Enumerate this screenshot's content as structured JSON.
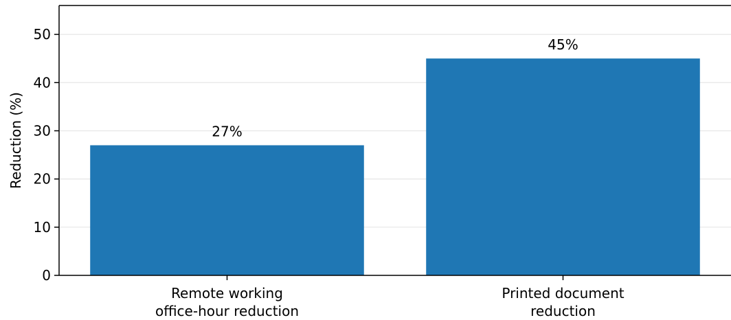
{
  "chart_data": {
    "type": "bar",
    "categories": [
      [
        "Remote working",
        "office-hour reduction"
      ],
      [
        "Printed document",
        "reduction"
      ]
    ],
    "values": [
      27,
      45
    ],
    "data_labels": [
      "27%",
      "45%"
    ],
    "title": "",
    "xlabel": "",
    "ylabel": "Reduction (%)",
    "ylim": [
      0,
      56
    ],
    "yticks": [
      0,
      10,
      20,
      30,
      40,
      50
    ],
    "grid": "horizontal",
    "bar_color": "#1f77b4",
    "grid_color": "#e6e6e6",
    "axis_color": "#000000"
  }
}
